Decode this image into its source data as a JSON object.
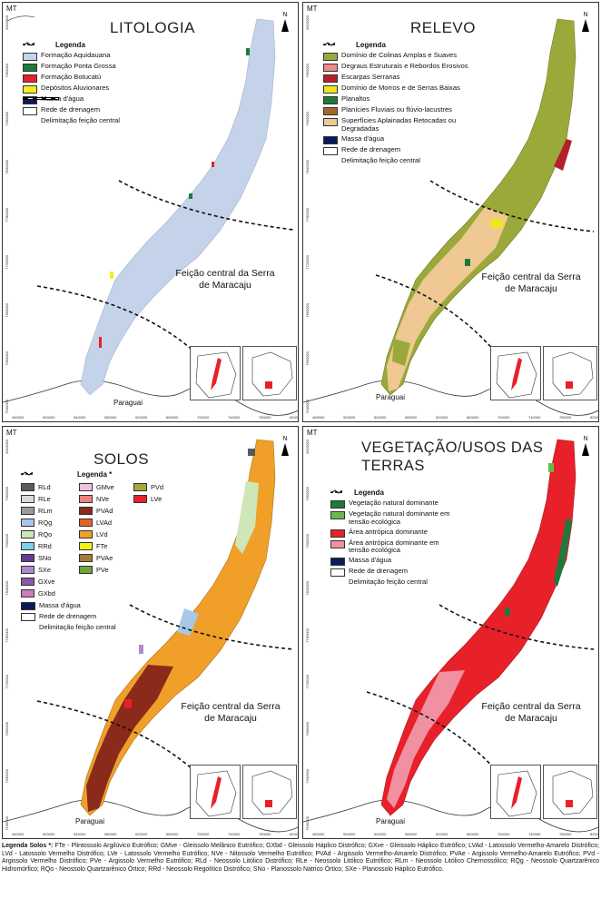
{
  "common": {
    "mt": "MT",
    "north": "N",
    "feicao": "Feição central da Serra de Maracaju",
    "paraguai": "Paraguai",
    "y_ticks": [
      "8020000",
      "7960000",
      "7900000",
      "7840000",
      "7780000",
      "7720000",
      "7660000",
      "7600000",
      "7540000"
    ],
    "x_ticks": [
      "460000",
      "500000",
      "540000",
      "580000",
      "620000",
      "660000",
      "700000",
      "740000",
      "780000",
      "820000"
    ]
  },
  "litologia": {
    "title": "LITOLOGIA",
    "legend_title": "Legenda",
    "items": [
      {
        "label": "Formação Aquidauana",
        "color": "#c5d3ea"
      },
      {
        "label": "Formação Ponta Grossa",
        "color": "#1f7a3a"
      },
      {
        "label": "Formação Botucatú",
        "color": "#e8202a"
      },
      {
        "label": "Depósitos Aluvionares",
        "color": "#f2ee1e"
      },
      {
        "label": "Massa d'água",
        "color": "#0b1a5a"
      },
      {
        "label": "Rede de drenagem",
        "color": "#ffffff"
      },
      {
        "label": "Delimitação feição central",
        "color": "#ffffff"
      }
    ]
  },
  "relevo": {
    "title": "RELEVO",
    "legend_title": "Legenda",
    "items": [
      {
        "label": "Domínio de Colinas Amplas e Suaves",
        "color": "#9aa93a"
      },
      {
        "label": "Degraus Estruturais e Rebordos Erosivos",
        "color": "#f08a86"
      },
      {
        "label": "Escarpas Serranas",
        "color": "#b3202c"
      },
      {
        "label": "Domínio de Morros e de Serras Baixas",
        "color": "#eee61e"
      },
      {
        "label": "Planaltos",
        "color": "#1f7a3a"
      },
      {
        "label": "Planícies Fluviais ou flúvio-lacustres",
        "color": "#a5672a"
      },
      {
        "label": "Superfícies Aplainadas Retocadas ou Degradadas",
        "color": "#efc894"
      },
      {
        "label": "Massa d'água",
        "color": "#0b1a5a"
      },
      {
        "label": "Rede de drenagem",
        "color": "#ffffff"
      },
      {
        "label": "Delimitação feição central",
        "color": "#ffffff"
      }
    ]
  },
  "solos": {
    "title": "SOLOS",
    "legend_title": "Legenda *",
    "col1": [
      {
        "label": "RLd",
        "color": "#5a5a5a"
      },
      {
        "label": "RLe",
        "color": "#d9d9d9"
      },
      {
        "label": "RLm",
        "color": "#9a9a9a"
      },
      {
        "label": "RQg",
        "color": "#a8c8e8"
      },
      {
        "label": "RQo",
        "color": "#cfe6b8"
      },
      {
        "label": "RRd",
        "color": "#7fd0e8"
      },
      {
        "label": "SNo",
        "color": "#6a3a9a"
      },
      {
        "label": "SXe",
        "color": "#b088d0"
      },
      {
        "label": "GXve",
        "color": "#8a58a8"
      },
      {
        "label": "GXbd",
        "color": "#d07ab8"
      }
    ],
    "col2": [
      {
        "label": "GMve",
        "color": "#f4c0dc"
      },
      {
        "label": "NVe",
        "color": "#f08080"
      },
      {
        "label": "PVAd",
        "color": "#8a2a1a"
      },
      {
        "label": "LVAd",
        "color": "#e8602a"
      },
      {
        "label": "LVd",
        "color": "#f0a028"
      },
      {
        "label": "FTe",
        "color": "#f5ee1a"
      },
      {
        "label": "PVAe",
        "color": "#a67a3a"
      },
      {
        "label": "PVe",
        "color": "#6aa83a"
      }
    ],
    "col3": [
      {
        "label": "PVd",
        "color": "#a8a83a"
      },
      {
        "label": "LVe",
        "color": "#e8202a"
      }
    ],
    "extra": [
      {
        "label": "Massa d'água",
        "color": "#0b1a5a"
      },
      {
        "label": "Rede de drenagem",
        "color": "#ffffff"
      },
      {
        "label": "Delimitação feição central",
        "color": "#ffffff"
      }
    ]
  },
  "vegetacao": {
    "title": "VEGETAÇÃO/USOS DAS TERRAS",
    "legend_title": "Legenda",
    "items": [
      {
        "label": "Vegetação natural dominante",
        "color": "#1e7a3a"
      },
      {
        "label": "Vegetação natural dominante em tensão ecológica",
        "color": "#6ab84a"
      },
      {
        "label": "Área antrópica dominante",
        "color": "#e8202a"
      },
      {
        "label": "Área antrópica dominante em tensão ecológica",
        "color": "#f090a0"
      },
      {
        "label": "Massa d'água",
        "color": "#0b1a5a"
      },
      {
        "label": "Rede de drenagem",
        "color": "#ffffff"
      },
      {
        "label": "Delimitação feição central",
        "color": "#ffffff"
      }
    ]
  },
  "footer": {
    "heading": "Legenda Solos *:",
    "text": "FTe - Plintossolo Argilúvico Eutrófico; GMve - Gleissolo Melânico Eutrófico; GXbd - Gleissolo Háplico Distrófico; GXve - Gleissolo Háplico Eutrófico; LVAd - Latossolo Vermelho-Amarelo Distrófico; LVd - Latossolo Vermelho Distrófico; LVe - Latossolo Vermelho Eutrófico; NVe - Nitossolo Vermelho Eutrófico; PVAd - Argissolo Vermelho-Amarelo Distrófico; PVAe - Argissolo Vermelho-Amarelo Eutrófico; PVd - Argissolo Vermelho Distrófico; PVe - Argissolo Vermelho Eutrófico; RLd - Neossolo Litólico Distrófico; RLe - Neossolo Litólico Eutrófico; RLm - Neossolo Litólico Chernossólico; RQg - Neossolo Quartzarênico Hidromórfico; RQo - Neossolo Quartzarênico Órtico; RRd - Neossolo Regolítico Distrófico; SNo - Planossolo Nátrico Órtico; SXe - Planossolo Háplico Eutrófico."
  }
}
